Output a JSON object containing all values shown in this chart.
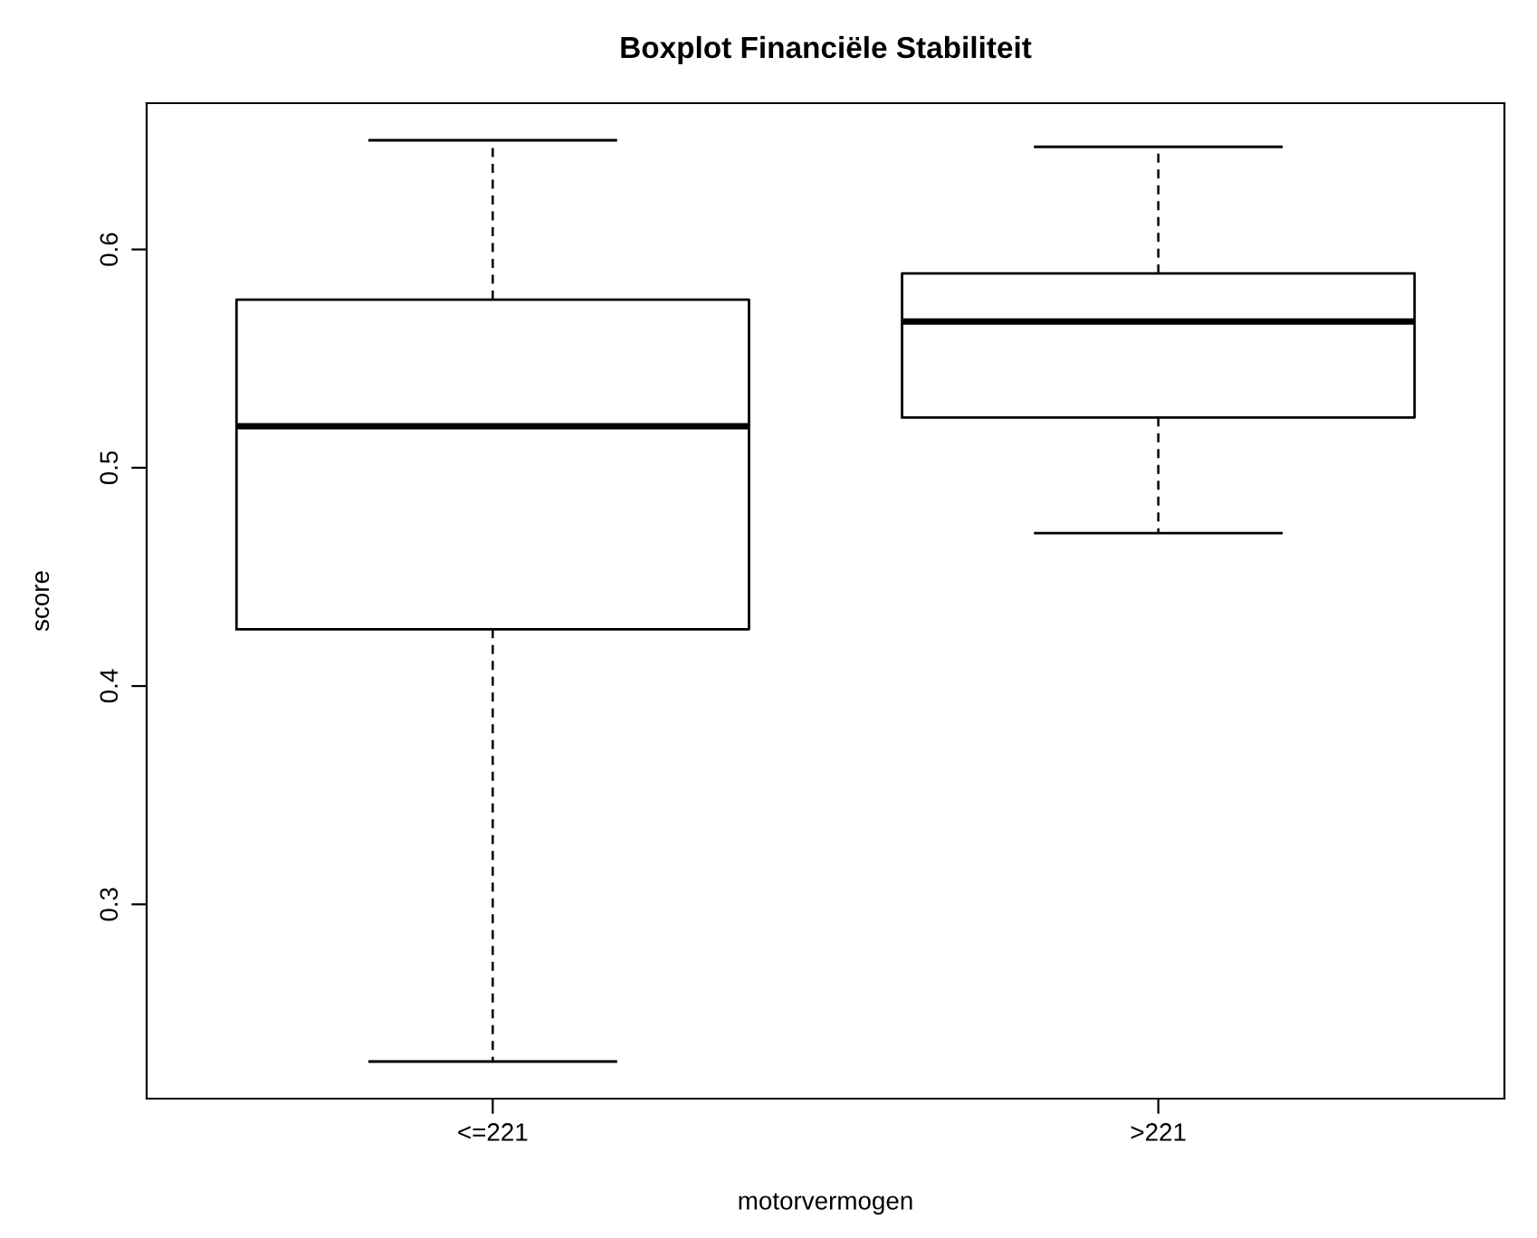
{
  "chart_data": {
    "type": "box",
    "title": "Boxplot Financiële Stabiliteit",
    "xlabel": "motorvermogen",
    "ylabel": "score",
    "categories": [
      "<=221",
      ">221"
    ],
    "boxes": [
      {
        "low": 0.228,
        "q1": 0.426,
        "median": 0.519,
        "q3": 0.577,
        "high": 0.65
      },
      {
        "low": 0.47,
        "q1": 0.523,
        "median": 0.567,
        "q3": 0.589,
        "high": 0.647
      }
    ],
    "ylim": [
      0.211,
      0.667
    ],
    "yticks": [
      0.3,
      0.4,
      0.5,
      0.6
    ],
    "grid": false,
    "legend": false
  }
}
